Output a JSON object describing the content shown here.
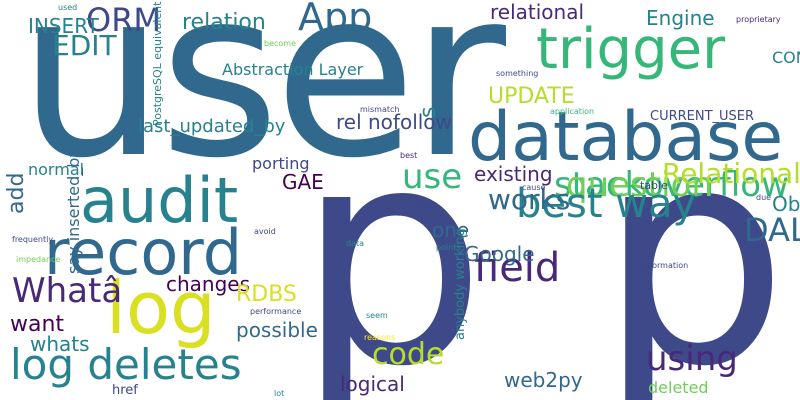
{
  "palette": [
    "#440154",
    "#482878",
    "#3e4989",
    "#31688e",
    "#26828e",
    "#1f9e89",
    "#35b779",
    "#6ece58",
    "#b5de2b",
    "#d9e021",
    "#fde725"
  ],
  "words": [
    "user",
    "p",
    "p",
    "database",
    "trigger",
    "audit",
    "record",
    "log",
    "log deletes",
    "App",
    "ORM",
    "relation",
    "relational",
    "Engine",
    "stackoverflow",
    "question",
    "best way",
    "field",
    "DAL",
    "using",
    "Object",
    "CONTEXT_INFO",
    "UPDATE",
    "Relational Mapper",
    "use",
    "GAE",
    "existing",
    "works",
    "one",
    "Google",
    "code",
    "web2py",
    "logical",
    "possible",
    "want",
    "whats",
    "changes",
    "RDBS",
    "Whatâ",
    "href",
    "deleted",
    "rel nofollow",
    "Abstraction Layer",
    "last_updated_by",
    "normal",
    "porting",
    "INSERT",
    "EDIT",
    "CURRENT_USER",
    "table",
    "add",
    "s",
    "say inserted_by",
    "anybody working",
    "PostgreSQL equivalent",
    "information",
    "proprietary",
    "something",
    "application",
    "mismatch",
    "become",
    "used",
    "best",
    "cause",
    "due",
    "moot",
    "avoid",
    "data",
    "seem",
    "points",
    "performance",
    "frequently",
    "impedance",
    "lot",
    "reasons"
  ]
}
